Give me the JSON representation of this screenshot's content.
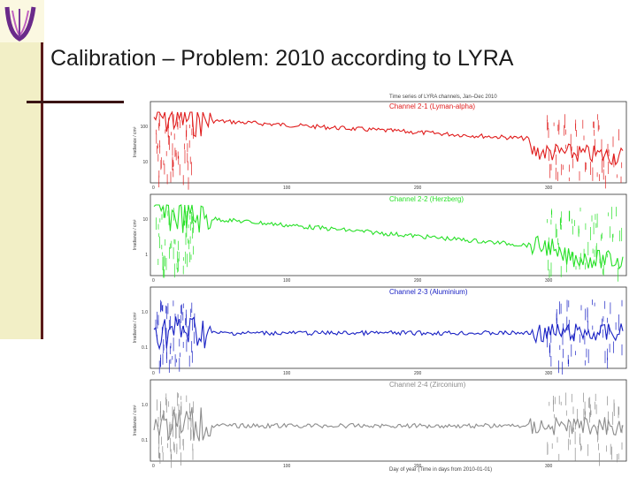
{
  "slide": {
    "title": "Calibration – Problem: 2010 according to LYRA"
  },
  "figure": {
    "top_title": "Time series of LYRA channels, Jan–Dec 2010",
    "x_tick_labels": [
      "0",
      "100",
      "200",
      "300"
    ],
    "x_axis_label": "Day of year (Time in days from 2010-01-01)",
    "panels": [
      {
        "label": "Channel 2-1 (Lyman-alpha)",
        "color": "#e01c1c",
        "ylabel": "Irradiance / cm²",
        "y_ticks": [
          "100",
          "10"
        ]
      },
      {
        "label": "Channel 2-2 (Herzberg)",
        "color": "#27e027",
        "ylabel": "Irradiance / cm²",
        "y_ticks": [
          "10",
          "1"
        ]
      },
      {
        "label": "Channel 2-3 (Aluminium)",
        "color": "#1a22c4",
        "ylabel": "Irradiance / cm²",
        "y_ticks": [
          "1.0",
          "0.1"
        ]
      },
      {
        "label": "Channel 2-4 (Zirconium)",
        "color": "#8c8c8c",
        "ylabel": "Irradiance / cm²",
        "y_ticks": [
          "1.0",
          "0.1"
        ]
      }
    ]
  }
}
